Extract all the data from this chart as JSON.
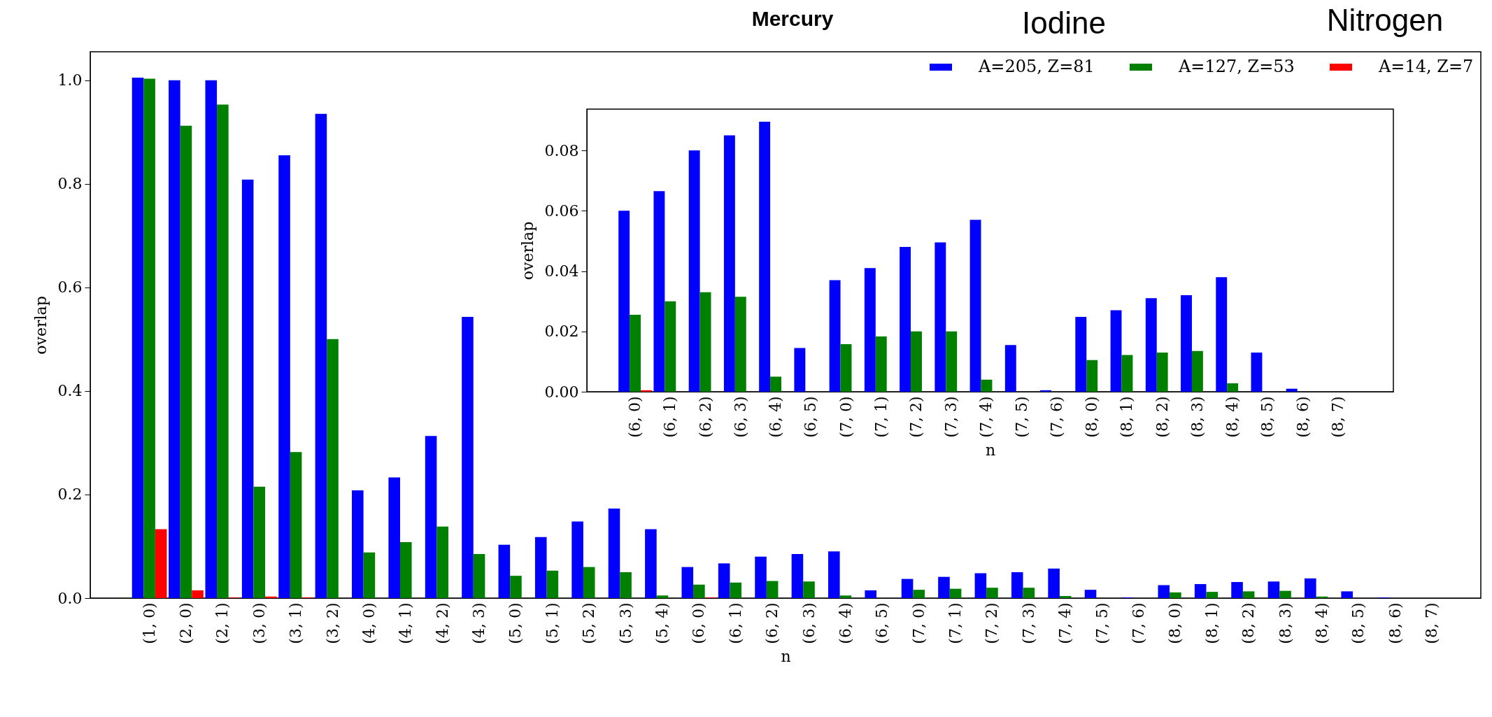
{
  "chart_data": [
    {
      "type": "bar",
      "xlabel": "n",
      "ylabel": "overlap",
      "legend": "top right",
      "annotations": [
        "Mercury",
        "Iodine",
        "Nitrogen"
      ],
      "categories": [
        "(1, 0)",
        "(2, 0)",
        "(2, 1)",
        "(3, 0)",
        "(3, 1)",
        "(3, 2)",
        "(4, 0)",
        "(4, 1)",
        "(4, 2)",
        "(4, 3)",
        "(5, 0)",
        "(5, 1)",
        "(5, 2)",
        "(5, 3)",
        "(5, 4)",
        "(6, 0)",
        "(6, 1)",
        "(6, 2)",
        "(6, 3)",
        "(6, 4)",
        "(6, 5)",
        "(7, 0)",
        "(7, 1)",
        "(7, 2)",
        "(7, 3)",
        "(7, 4)",
        "(7, 5)",
        "(7, 6)",
        "(8, 0)",
        "(8, 1)",
        "(8, 2)",
        "(8, 3)",
        "(8, 4)",
        "(8, 5)",
        "(8, 6)",
        "(8, 7)"
      ],
      "series": [
        {
          "name": "A=205, Z=81",
          "color": "#0000ff",
          "values": [
            1.005,
            1.0,
            1.0,
            0.808,
            0.855,
            0.935,
            0.208,
            0.233,
            0.313,
            0.543,
            0.103,
            0.118,
            0.148,
            0.173,
            0.133,
            0.06,
            0.067,
            0.08,
            0.085,
            0.09,
            0.015,
            0.037,
            0.041,
            0.048,
            0.05,
            0.057,
            0.016,
            0.001,
            0.025,
            0.027,
            0.031,
            0.032,
            0.038,
            0.013,
            0.001,
            0
          ]
        },
        {
          "name": "A=127, Z=53",
          "color": "#008000",
          "values": [
            1.003,
            0.912,
            0.953,
            0.215,
            0.282,
            0.5,
            0.088,
            0.108,
            0.138,
            0.085,
            0.043,
            0.053,
            0.06,
            0.05,
            0.005,
            0.026,
            0.03,
            0.033,
            0.032,
            0.005,
            0,
            0.016,
            0.018,
            0.02,
            0.02,
            0.004,
            0,
            0,
            0.011,
            0.012,
            0.013,
            0.014,
            0.003,
            0,
            0,
            0
          ]
        },
        {
          "name": "A=14, Z=7",
          "color": "#ff0000",
          "values": [
            0.133,
            0.015,
            0.001,
            0.003,
            0.001,
            0,
            0,
            0,
            0,
            0,
            0,
            0,
            0,
            0,
            0,
            0.001,
            0,
            0,
            0,
            0,
            0,
            0,
            0,
            0,
            0,
            0,
            0,
            0,
            0,
            0,
            0,
            0,
            0,
            0,
            0,
            0
          ]
        }
      ],
      "ylim": [
        0,
        1.055
      ],
      "yticks": [
        {
          "value": 0,
          "label": "0.0"
        },
        {
          "value": 0.2,
          "label": "0.2"
        },
        {
          "value": 0.4,
          "label": "0.4"
        },
        {
          "value": 0.6,
          "label": "0.6"
        },
        {
          "value": 0.8,
          "label": "0.8"
        },
        {
          "value": 1,
          "label": "1.0"
        }
      ]
    },
    {
      "type": "bar",
      "xlabel": "n",
      "ylabel": "overlap",
      "categories": [
        "(6, 0)",
        "(6, 1)",
        "(6, 2)",
        "(6, 3)",
        "(6, 4)",
        "(6, 5)",
        "(7, 0)",
        "(7, 1)",
        "(7, 2)",
        "(7, 3)",
        "(7, 4)",
        "(7, 5)",
        "(7, 6)",
        "(8, 0)",
        "(8, 1)",
        "(8, 2)",
        "(8, 3)",
        "(8, 4)",
        "(8, 5)",
        "(8, 6)",
        "(8, 7)"
      ],
      "series": [
        {
          "color": "#0000ff",
          "values": [
            0.06,
            0.0665,
            0.08,
            0.085,
            0.0895,
            0.0145,
            0.037,
            0.041,
            0.048,
            0.0495,
            0.057,
            0.0155,
            0.0005,
            0.0248,
            0.027,
            0.031,
            0.032,
            0.038,
            0.013,
            0.001,
            0
          ]
        },
        {
          "color": "#008000",
          "values": [
            0.0255,
            0.03,
            0.033,
            0.0315,
            0.005,
            0,
            0.0158,
            0.0183,
            0.02,
            0.02,
            0.004,
            0,
            0,
            0.0105,
            0.0122,
            0.013,
            0.0135,
            0.0028,
            0,
            0,
            0
          ]
        },
        {
          "color": "#ff0000",
          "values": [
            0.0005,
            0,
            0,
            0,
            0,
            0,
            0,
            0,
            0,
            0,
            0,
            0,
            0,
            0,
            0,
            0,
            0,
            0,
            0,
            0,
            0
          ]
        }
      ],
      "ylim": [
        0,
        0.0937
      ],
      "yticks": [
        {
          "value": 0,
          "label": "0.00"
        },
        {
          "value": 0.02,
          "label": "0.02"
        },
        {
          "value": 0.04,
          "label": "0.04"
        },
        {
          "value": 0.06,
          "label": "0.06"
        },
        {
          "value": 0.08,
          "label": "0.08"
        }
      ]
    }
  ]
}
